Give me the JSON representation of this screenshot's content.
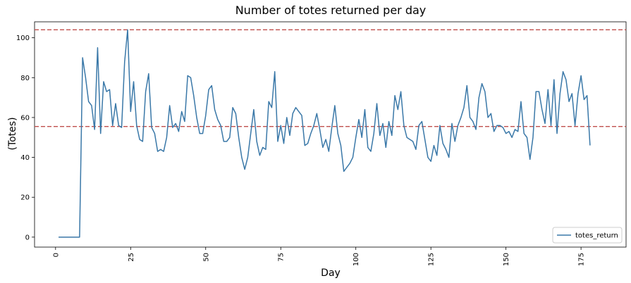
{
  "chart_data": {
    "type": "line",
    "title": "Number of totes returned per day",
    "xlabel": "Day",
    "ylabel": "(Totes)",
    "xlim": [
      -7,
      190
    ],
    "ylim": [
      -5,
      108
    ],
    "xticks": [
      0,
      25,
      50,
      75,
      100,
      125,
      150,
      175
    ],
    "xtick_labels": [
      "0",
      "25",
      "50",
      "75",
      "100",
      "125",
      "150",
      "175"
    ],
    "yticks": [
      0,
      20,
      40,
      60,
      80,
      100
    ],
    "ytick_labels": [
      "0",
      "20",
      "40",
      "60",
      "80",
      "100"
    ],
    "grid": false,
    "legend_position": "lower-right",
    "series": [
      {
        "name": "totes_return",
        "color": "#3a78a8",
        "x_start": 1,
        "values": [
          0,
          0,
          0,
          0,
          0,
          0,
          0,
          0,
          90,
          80,
          68,
          66,
          54,
          95,
          52,
          78,
          73,
          74,
          56,
          67,
          56,
          55,
          88,
          104,
          63,
          78,
          56,
          49,
          48,
          73,
          82,
          55,
          52,
          43,
          44,
          43,
          50,
          66,
          55,
          57,
          53,
          63,
          58,
          81,
          80,
          71,
          60,
          52,
          52,
          61,
          74,
          76,
          64,
          59,
          56,
          48,
          48,
          50,
          65,
          62,
          50,
          40,
          34,
          40,
          52,
          64,
          48,
          41,
          45,
          44,
          68,
          65,
          83,
          48,
          56,
          47,
          60,
          51,
          62,
          65,
          63,
          61,
          46,
          47,
          52,
          56,
          62,
          54,
          45,
          49,
          43,
          55,
          66,
          52,
          46,
          33,
          35,
          37,
          40,
          50,
          59,
          50,
          64,
          45,
          43,
          52,
          67,
          51,
          57,
          45,
          58,
          51,
          71,
          64,
          73,
          56,
          50,
          49,
          48,
          44,
          56,
          58,
          49,
          40,
          38,
          46,
          41,
          56,
          47,
          44,
          40,
          57,
          48,
          56,
          60,
          65,
          76,
          60,
          58,
          54,
          70,
          77,
          73,
          60,
          62,
          53,
          56,
          56,
          55,
          52,
          53,
          50,
          54,
          53,
          68,
          52,
          50,
          39,
          50,
          73,
          73,
          64,
          57,
          74,
          56,
          79,
          52,
          72,
          83,
          79,
          68,
          72,
          56,
          72,
          81,
          69,
          71,
          46
        ]
      }
    ],
    "reference_lines": [
      {
        "orientation": "horizontal",
        "y": 104,
        "style": "dashed",
        "color": "#c0504d"
      },
      {
        "orientation": "horizontal",
        "y": 55.5,
        "style": "dashed",
        "color": "#c0504d"
      }
    ]
  }
}
